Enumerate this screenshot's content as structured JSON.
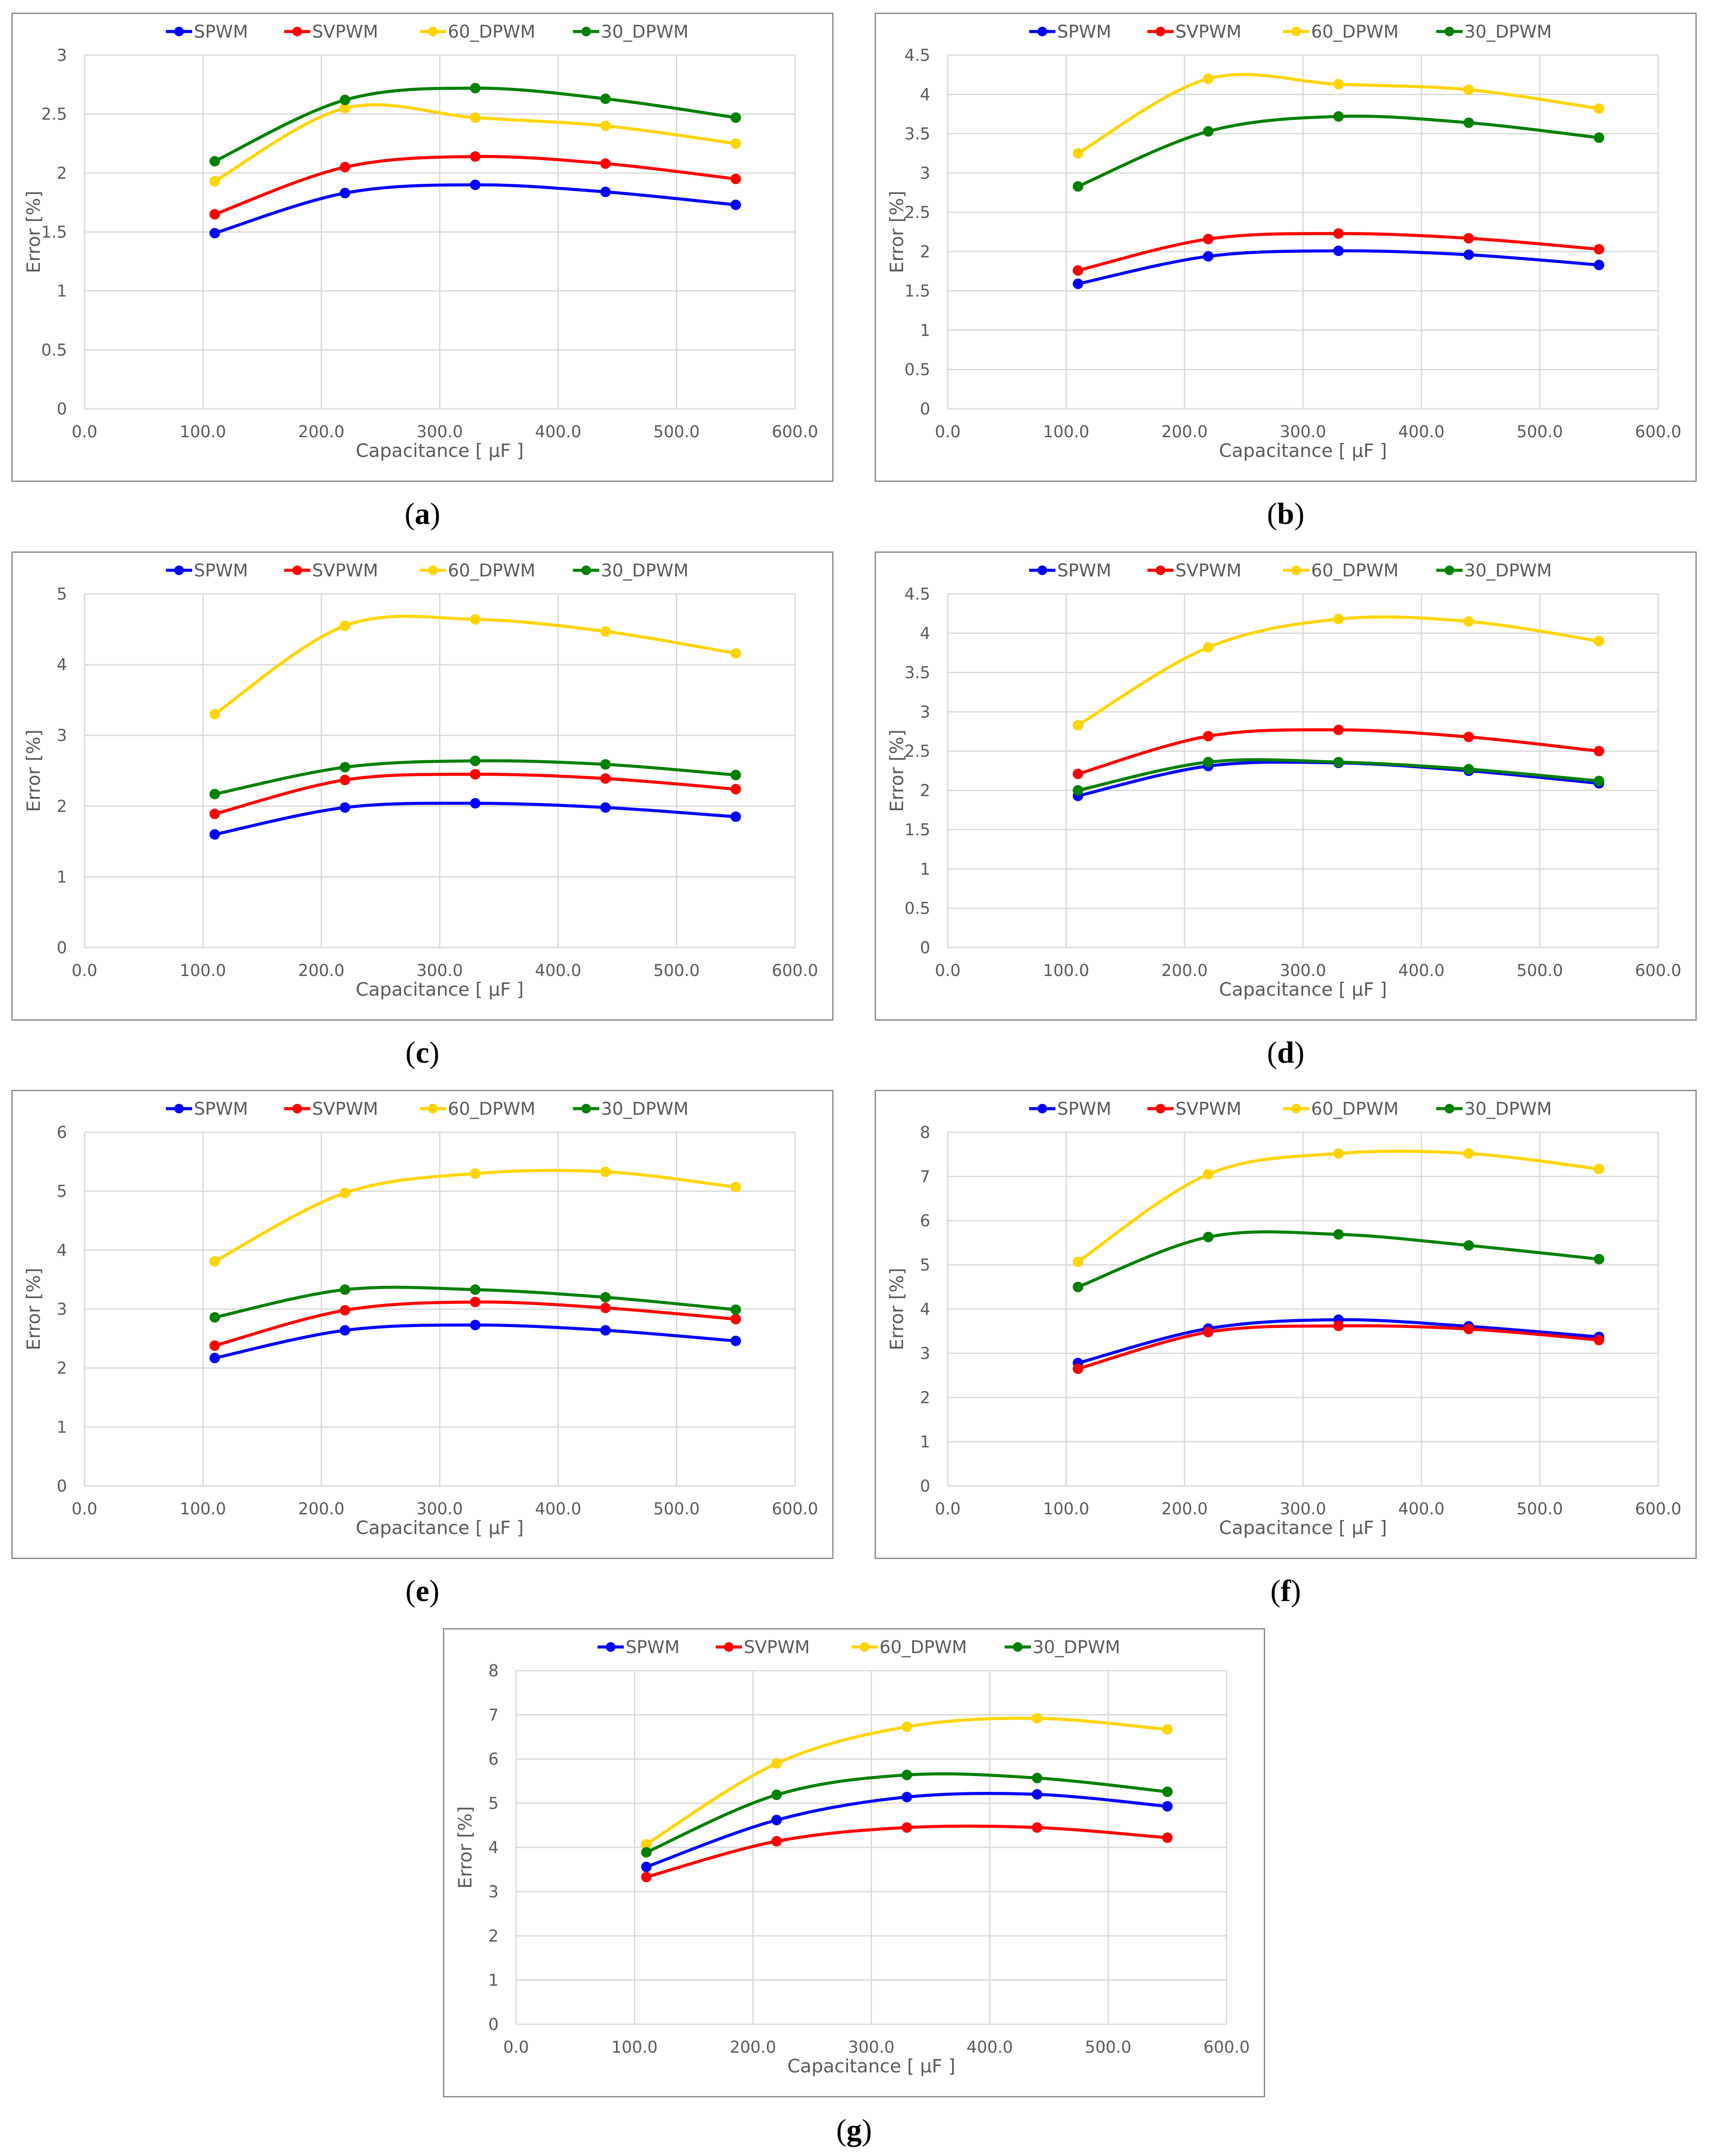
{
  "colors": {
    "SPWM": "#0000ff",
    "SVPWM": "#ff0000",
    "60_DPWM": "#ffd400",
    "30_DPWM": "#008000",
    "grid": "#d9d9d9",
    "axis_text": "#595959"
  },
  "chart_data": [
    {
      "panel": "a",
      "type": "line",
      "xlabel": "Capacitance [ μF ]",
      "ylabel": "Error [%]",
      "xlim": [
        0,
        600
      ],
      "xticks": [
        "0.0",
        "100.0",
        "200.0",
        "300.0",
        "400.0",
        "500.0",
        "600.0"
      ],
      "ylim": [
        0,
        3
      ],
      "yticks": [
        "0",
        "0.5",
        "1",
        "1.5",
        "2",
        "2.5",
        "3"
      ],
      "x": [
        110,
        220,
        330,
        440,
        550
      ],
      "legend_position": "top",
      "series": [
        {
          "name": "SPWM",
          "values": [
            1.49,
            1.83,
            1.9,
            1.84,
            1.73
          ]
        },
        {
          "name": "SVPWM",
          "values": [
            1.65,
            2.05,
            2.14,
            2.08,
            1.95
          ]
        },
        {
          "name": "60_DPWM",
          "values": [
            1.93,
            2.55,
            2.47,
            2.4,
            2.25
          ]
        },
        {
          "name": "30_DPWM",
          "values": [
            2.1,
            2.62,
            2.72,
            2.63,
            2.47
          ]
        }
      ]
    },
    {
      "panel": "b",
      "type": "line",
      "xlabel": "Capacitance [ μF ]",
      "ylabel": "Error [%]",
      "xlim": [
        0,
        600
      ],
      "xticks": [
        "0.0",
        "100.0",
        "200.0",
        "300.0",
        "400.0",
        "500.0",
        "600.0"
      ],
      "ylim": [
        0,
        4.5
      ],
      "yticks": [
        "0",
        "0.5",
        "1",
        "1.5",
        "2",
        "2.5",
        "3",
        "3.5",
        "4",
        "4.5"
      ],
      "x": [
        110,
        220,
        330,
        440,
        550
      ],
      "legend_position": "top",
      "series": [
        {
          "name": "SPWM",
          "values": [
            1.59,
            1.94,
            2.01,
            1.96,
            1.83
          ]
        },
        {
          "name": "SVPWM",
          "values": [
            1.76,
            2.16,
            2.23,
            2.17,
            2.03
          ]
        },
        {
          "name": "60_DPWM",
          "values": [
            3.25,
            4.2,
            4.13,
            4.06,
            3.82
          ]
        },
        {
          "name": "30_DPWM",
          "values": [
            2.83,
            3.53,
            3.72,
            3.64,
            3.45
          ]
        }
      ]
    },
    {
      "panel": "c",
      "type": "line",
      "xlabel": "Capacitance [ μF ]",
      "ylabel": "Error [%]",
      "xlim": [
        0,
        600
      ],
      "xticks": [
        "0.0",
        "100.0",
        "200.0",
        "300.0",
        "400.0",
        "500.0",
        "600.0"
      ],
      "ylim": [
        0,
        5
      ],
      "yticks": [
        "0",
        "1",
        "2",
        "3",
        "4",
        "5"
      ],
      "x": [
        110,
        220,
        330,
        440,
        550
      ],
      "legend_position": "top",
      "series": [
        {
          "name": "SPWM",
          "values": [
            1.6,
            1.98,
            2.04,
            1.98,
            1.85
          ]
        },
        {
          "name": "SVPWM",
          "values": [
            1.89,
            2.37,
            2.45,
            2.39,
            2.24
          ]
        },
        {
          "name": "60_DPWM",
          "values": [
            3.3,
            4.55,
            4.64,
            4.47,
            4.16
          ]
        },
        {
          "name": "30_DPWM",
          "values": [
            2.17,
            2.55,
            2.64,
            2.59,
            2.44
          ]
        }
      ]
    },
    {
      "panel": "d",
      "type": "line",
      "xlabel": "Capacitance [ μF ]",
      "ylabel": "Error [%]",
      "xlim": [
        0,
        600
      ],
      "xticks": [
        "0.0",
        "100.0",
        "200.0",
        "300.0",
        "400.0",
        "500.0",
        "600.0"
      ],
      "ylim": [
        0,
        4.5
      ],
      "yticks": [
        "0",
        "0.5",
        "1",
        "1.5",
        "2",
        "2.5",
        "3",
        "3.5",
        "4",
        "4.5"
      ],
      "x": [
        110,
        220,
        330,
        440,
        550
      ],
      "legend_position": "top",
      "series": [
        {
          "name": "SPWM",
          "values": [
            1.93,
            2.31,
            2.35,
            2.25,
            2.09
          ]
        },
        {
          "name": "SVPWM",
          "values": [
            2.21,
            2.69,
            2.77,
            2.68,
            2.5
          ]
        },
        {
          "name": "60_DPWM",
          "values": [
            2.83,
            3.82,
            4.18,
            4.15,
            3.9
          ]
        },
        {
          "name": "30_DPWM",
          "values": [
            2.0,
            2.36,
            2.36,
            2.27,
            2.12
          ]
        }
      ]
    },
    {
      "panel": "e",
      "type": "line",
      "xlabel": "Capacitance [ μF ]",
      "ylabel": "Error [%]",
      "xlim": [
        0,
        600
      ],
      "xticks": [
        "0.0",
        "100.0",
        "200.0",
        "300.0",
        "400.0",
        "500.0",
        "600.0"
      ],
      "ylim": [
        0,
        6
      ],
      "yticks": [
        "0",
        "1",
        "2",
        "3",
        "4",
        "5",
        "6"
      ],
      "x": [
        110,
        220,
        330,
        440,
        550
      ],
      "legend_position": "top",
      "series": [
        {
          "name": "SPWM",
          "values": [
            2.17,
            2.64,
            2.73,
            2.64,
            2.46
          ]
        },
        {
          "name": "SVPWM",
          "values": [
            2.38,
            2.98,
            3.12,
            3.02,
            2.83
          ]
        },
        {
          "name": "60_DPWM",
          "values": [
            3.81,
            4.97,
            5.3,
            5.33,
            5.07
          ]
        },
        {
          "name": "30_DPWM",
          "values": [
            2.86,
            3.33,
            3.33,
            3.2,
            2.99
          ]
        }
      ]
    },
    {
      "panel": "f",
      "type": "line",
      "xlabel": "Capacitance [ μF ]",
      "ylabel": "Error [%]",
      "xlim": [
        0,
        600
      ],
      "xticks": [
        "0.0",
        "100.0",
        "200.0",
        "300.0",
        "400.0",
        "500.0",
        "600.0"
      ],
      "ylim": [
        0,
        8
      ],
      "yticks": [
        "0",
        "1",
        "2",
        "3",
        "4",
        "5",
        "6",
        "7",
        "8"
      ],
      "x": [
        110,
        220,
        330,
        440,
        550
      ],
      "legend_position": "top",
      "series": [
        {
          "name": "SPWM",
          "values": [
            2.78,
            3.56,
            3.76,
            3.61,
            3.37
          ]
        },
        {
          "name": "SVPWM",
          "values": [
            2.65,
            3.48,
            3.62,
            3.55,
            3.3
          ]
        },
        {
          "name": "60_DPWM",
          "values": [
            5.07,
            7.05,
            7.52,
            7.52,
            7.17
          ]
        },
        {
          "name": "30_DPWM",
          "values": [
            4.5,
            5.63,
            5.69,
            5.44,
            5.13
          ]
        }
      ]
    },
    {
      "panel": "g",
      "type": "line",
      "xlabel": "Capacitance [ μF ]",
      "ylabel": "Error [%]",
      "xlim": [
        0,
        600
      ],
      "xticks": [
        "0.0",
        "100.0",
        "200.0",
        "300.0",
        "400.0",
        "500.0",
        "600.0"
      ],
      "ylim": [
        0,
        8
      ],
      "yticks": [
        "0",
        "1",
        "2",
        "3",
        "4",
        "5",
        "6",
        "7",
        "8"
      ],
      "x": [
        110,
        220,
        330,
        440,
        550
      ],
      "legend_position": "top",
      "series": [
        {
          "name": "SPWM",
          "values": [
            3.56,
            4.62,
            5.14,
            5.2,
            4.93
          ]
        },
        {
          "name": "SVPWM",
          "values": [
            3.33,
            4.14,
            4.45,
            4.45,
            4.22
          ]
        },
        {
          "name": "60_DPWM",
          "values": [
            4.07,
            5.9,
            6.73,
            6.92,
            6.67
          ]
        },
        {
          "name": "30_DPWM",
          "values": [
            3.89,
            5.19,
            5.64,
            5.57,
            5.26
          ]
        }
      ]
    }
  ],
  "captions": [
    "a",
    "b",
    "c",
    "d",
    "e",
    "f",
    "g"
  ]
}
